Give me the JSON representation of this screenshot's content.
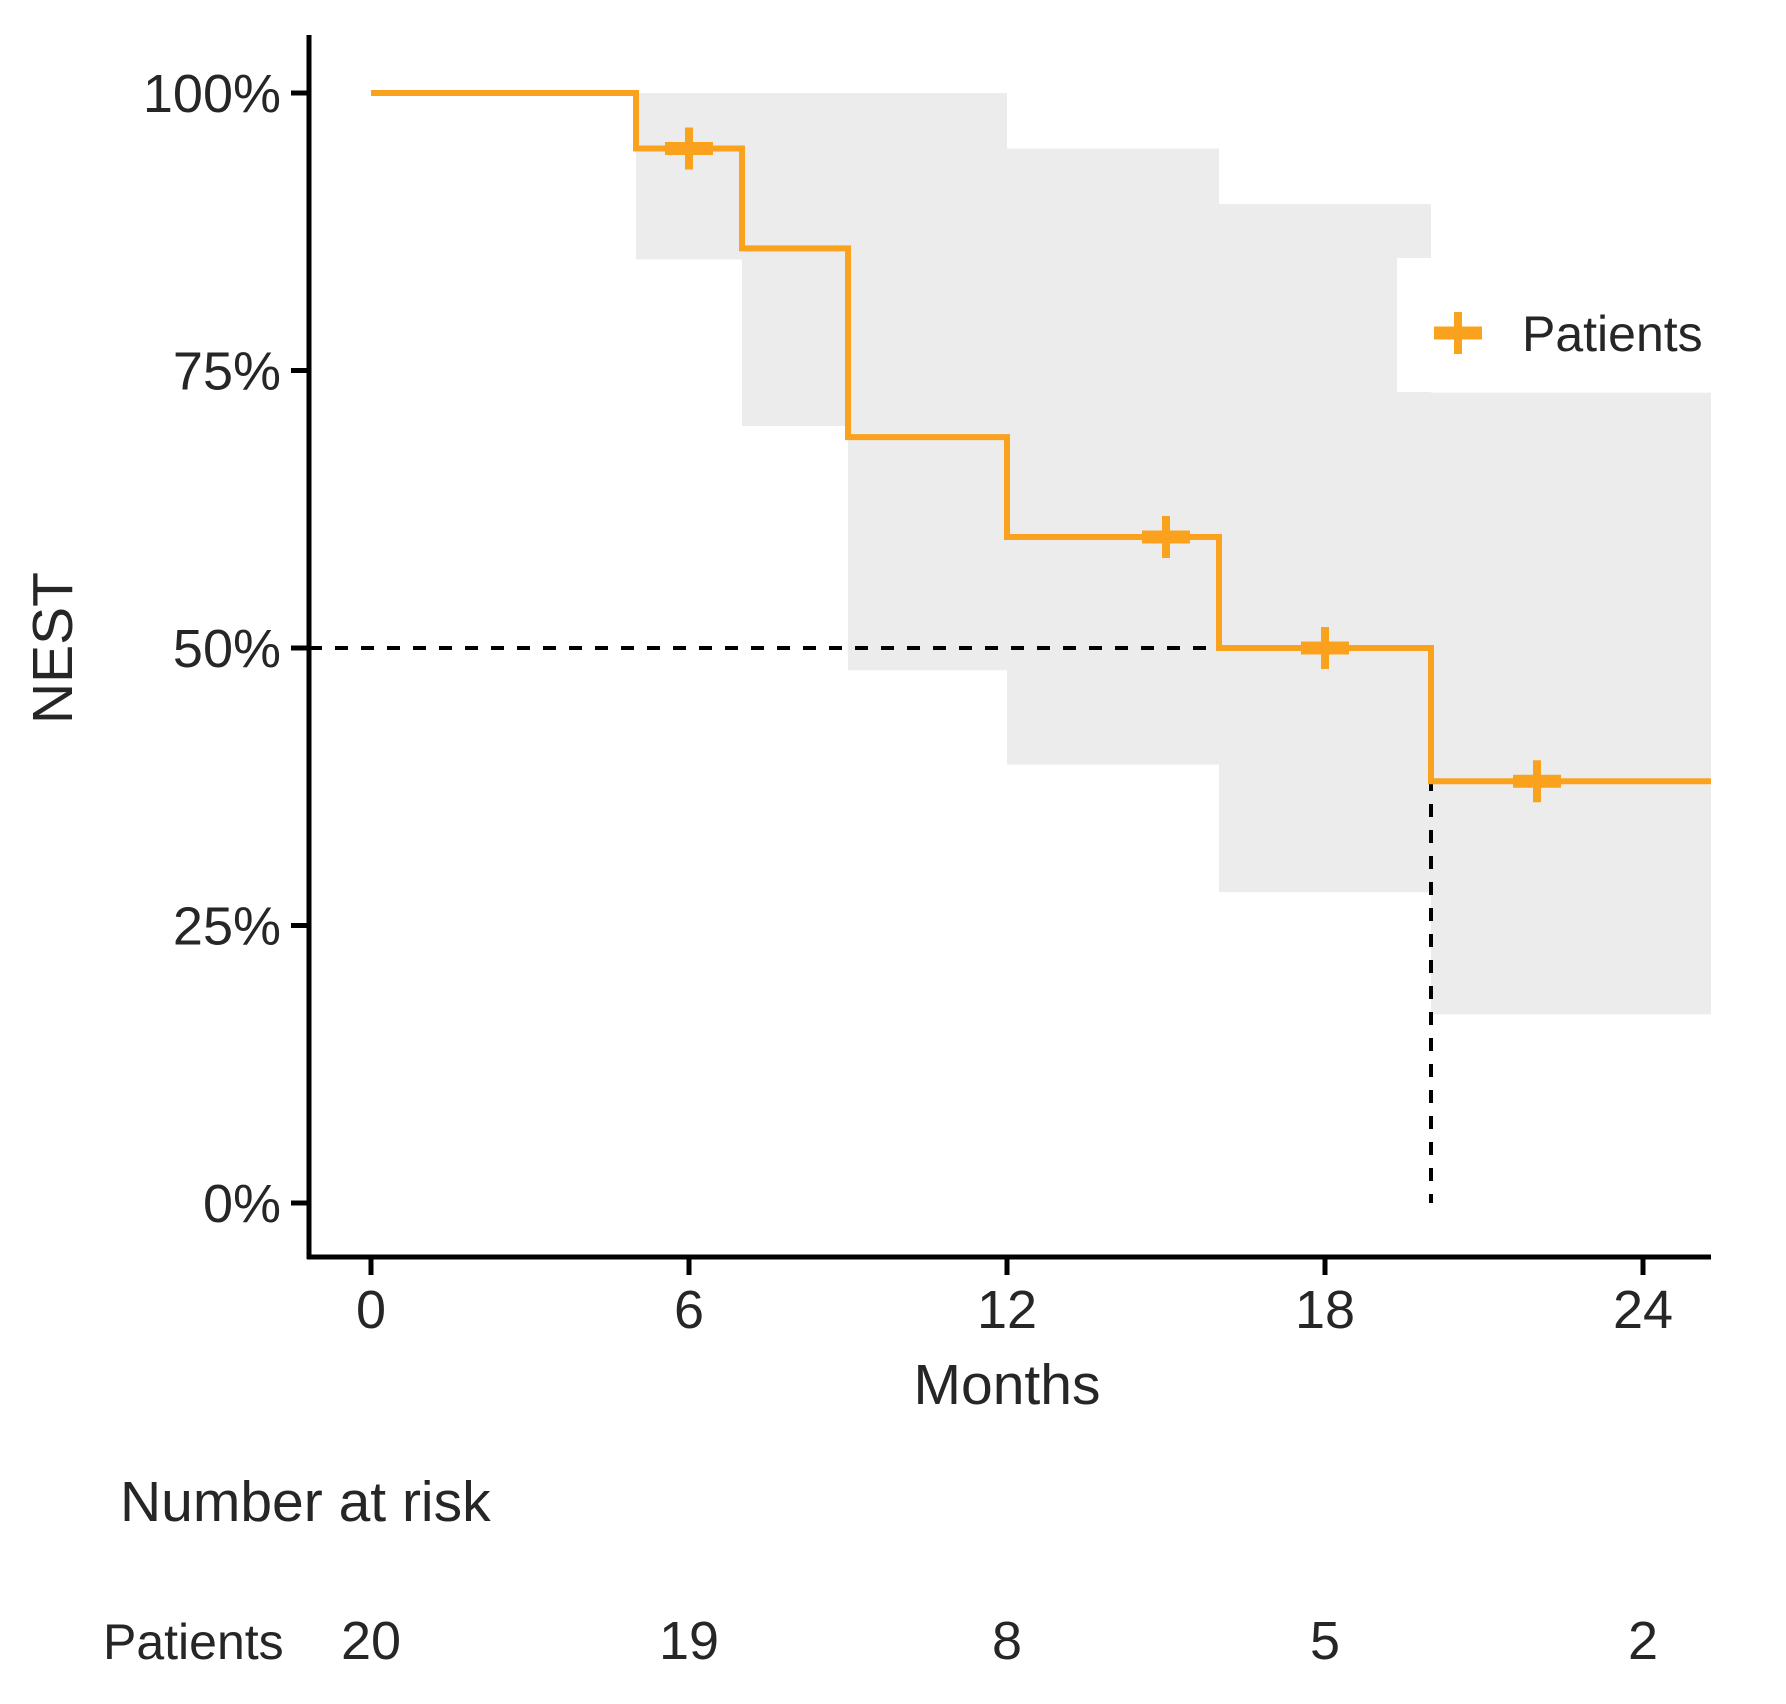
{
  "figure": {
    "y_axis_title": "NEST",
    "x_axis_title": "Months",
    "legend": {
      "label": "Patients"
    },
    "risk_table": {
      "title": "Number at risk",
      "row_label": "Patients",
      "times": [
        0,
        6,
        12,
        18,
        24
      ],
      "values": [
        20,
        19,
        8,
        5,
        2
      ]
    },
    "colors": {
      "curve": "#FAA21E",
      "confidence_band": "#ECECEC",
      "axis": "#000000",
      "text": "#262626",
      "median_dash": "#000000",
      "legend_background": "#ffffff"
    }
  },
  "chart_data": {
    "type": "line",
    "subtype": "kaplan-meier-step-survival",
    "title": "",
    "xlabel": "Months",
    "ylabel": "NEST",
    "xlim": [
      0,
      25.3
    ],
    "ylim_pct": [
      0,
      100
    ],
    "x_ticks": [
      0,
      6,
      12,
      18,
      24
    ],
    "y_tick_values": [
      0,
      25,
      50,
      75,
      100
    ],
    "y_tick_labels": [
      "0%",
      "25%",
      "50%",
      "75%",
      "100%"
    ],
    "grid": false,
    "legend_position": "right-inside",
    "series": [
      {
        "name": "Patients",
        "steps_time_pct": [
          [
            0,
            100
          ],
          [
            5,
            95
          ],
          [
            7,
            86
          ],
          [
            9,
            69
          ],
          [
            12,
            60
          ],
          [
            16,
            50
          ],
          [
            20,
            38
          ]
        ],
        "end_time": 25.3,
        "censor_marks_time_pct": [
          [
            6,
            95
          ],
          [
            15,
            60
          ],
          [
            18,
            50
          ],
          [
            22,
            38
          ]
        ],
        "confidence_band_segments": [
          {
            "t0": 5,
            "t1": 7,
            "lower_pct": 85,
            "upper_pct": 100
          },
          {
            "t0": 7,
            "t1": 9,
            "lower_pct": 70,
            "upper_pct": 100
          },
          {
            "t0": 9,
            "t1": 12,
            "lower_pct": 48,
            "upper_pct": 100
          },
          {
            "t0": 12,
            "t1": 16,
            "lower_pct": 39.5,
            "upper_pct": 95
          },
          {
            "t0": 16,
            "t1": 20,
            "lower_pct": 28,
            "upper_pct": 90
          },
          {
            "t0": 20,
            "t1": 25.3,
            "lower_pct": 17,
            "upper_pct": 73
          }
        ]
      }
    ],
    "median_annotation": {
      "time": 20,
      "survival_pct": 50
    }
  }
}
